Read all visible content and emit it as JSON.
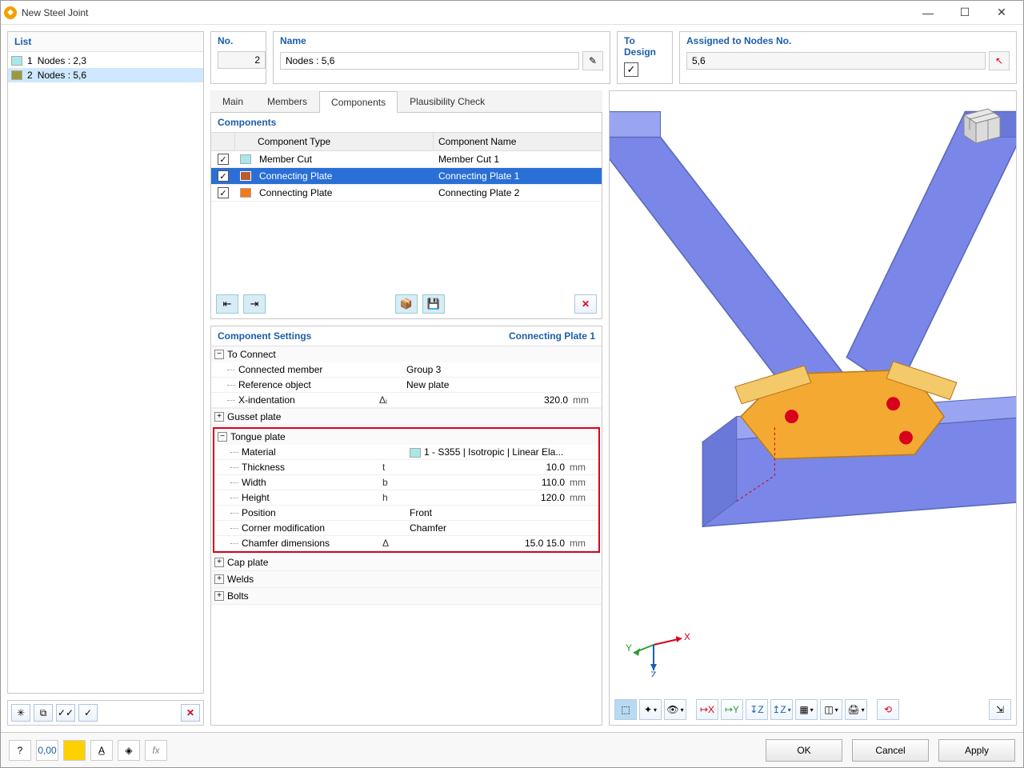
{
  "window": {
    "title": "New Steel Joint"
  },
  "list": {
    "header": "List",
    "items": [
      {
        "index": "1",
        "label": "Nodes : 2,3",
        "swatch": "#a8e8e8",
        "selected": false
      },
      {
        "index": "2",
        "label": "Nodes : 5,6",
        "swatch": "#9a9a3b",
        "selected": true
      }
    ]
  },
  "no": {
    "label": "No.",
    "value": "2"
  },
  "name": {
    "label": "Name",
    "value": "Nodes : 5,6"
  },
  "todesign": {
    "label": "To Design",
    "checked": true
  },
  "assigned": {
    "label": "Assigned to Nodes No.",
    "value": "5,6"
  },
  "tabs": {
    "items": [
      "Main",
      "Members",
      "Components",
      "Plausibility Check"
    ],
    "active": 2
  },
  "components": {
    "header": "Components",
    "col_type": "Component Type",
    "col_name": "Component Name",
    "rows": [
      {
        "checked": true,
        "swatch": "#a8e8e8",
        "type": "Member Cut",
        "name": "Member Cut 1",
        "selected": false
      },
      {
        "checked": true,
        "swatch": "#b85c2e",
        "type": "Connecting Plate",
        "name": "Connecting Plate 1",
        "selected": true
      },
      {
        "checked": true,
        "swatch": "#f77818",
        "type": "Connecting Plate",
        "name": "Connecting Plate 2",
        "selected": false
      }
    ]
  },
  "settings": {
    "header": "Component Settings",
    "subtitle": "Connecting Plate 1",
    "sections": {
      "to_connect": {
        "title": "To Connect",
        "rows": [
          {
            "label": "Connected member",
            "sym": "",
            "val": "Group 3",
            "unit": "",
            "align": "left"
          },
          {
            "label": "Reference object",
            "sym": "",
            "val": "New plate",
            "unit": "",
            "align": "left"
          },
          {
            "label": "X-indentation",
            "sym": "Δᵢ",
            "val": "320.0",
            "unit": "mm",
            "align": "right"
          }
        ]
      },
      "gusset": {
        "title": "Gusset plate",
        "expanded": false
      },
      "tongue": {
        "title": "Tongue plate",
        "rows": [
          {
            "label": "Material",
            "sym": "",
            "val": "1 - S355 | Isotropic | Linear Ela...",
            "unit": "",
            "align": "left",
            "swatch": "#a8e8e8"
          },
          {
            "label": "Thickness",
            "sym": "t",
            "val": "10.0",
            "unit": "mm",
            "align": "right"
          },
          {
            "label": "Width",
            "sym": "b",
            "val": "110.0",
            "unit": "mm",
            "align": "right"
          },
          {
            "label": "Height",
            "sym": "h",
            "val": "120.0",
            "unit": "mm",
            "align": "right"
          },
          {
            "label": "Position",
            "sym": "",
            "val": "Front",
            "unit": "",
            "align": "left"
          },
          {
            "label": "Corner modification",
            "sym": "",
            "val": "Chamfer",
            "unit": "",
            "align": "left"
          },
          {
            "label": "Chamfer dimensions",
            "sym": "Δ",
            "val": "15.0 15.0",
            "unit": "mm",
            "align": "right"
          }
        ]
      },
      "cap": {
        "title": "Cap plate",
        "expanded": false
      },
      "welds": {
        "title": "Welds",
        "expanded": false
      },
      "bolts": {
        "title": "Bolts",
        "expanded": false
      }
    }
  },
  "viewer": {
    "axis_x": "X",
    "axis_y": "Y",
    "axis_z": "Z",
    "beam_color": "#7a87e8",
    "plate_color": "#f4a933",
    "edge_color": "#5a6ab8",
    "bolt_color": "#d9001b"
  },
  "buttons": {
    "ok": "OK",
    "cancel": "Cancel",
    "apply": "Apply"
  }
}
